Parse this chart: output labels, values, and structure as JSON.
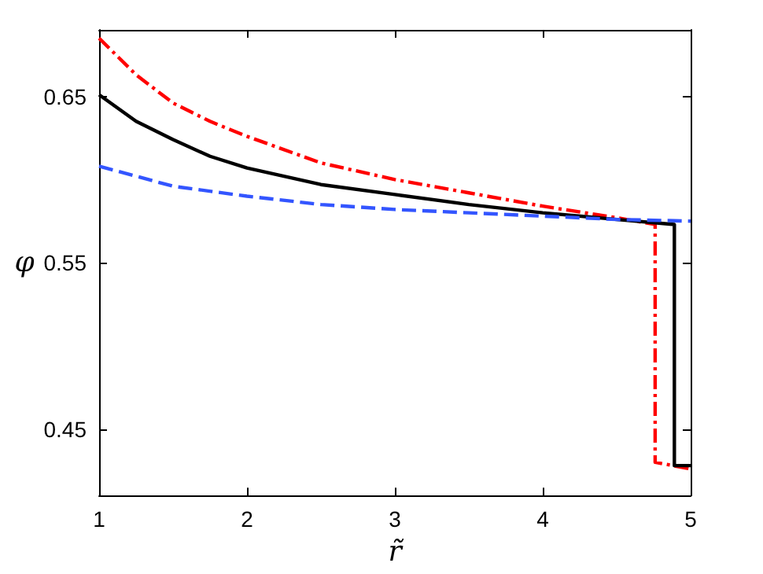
{
  "chart_data": {
    "type": "line",
    "xlabel": "r̃",
    "ylabel": "φ",
    "xlim": [
      1,
      5
    ],
    "ylim": [
      0.41,
      0.69
    ],
    "xticks": [
      1,
      2,
      3,
      4,
      5
    ],
    "yticks": [
      0.45,
      0.55,
      0.65
    ],
    "grid": false,
    "marker": "none",
    "series": [
      {
        "color": "#ff0000",
        "line_style": "dashdot",
        "x": [
          1,
          1.25,
          1.5,
          1.75,
          2,
          2.5,
          3,
          3.5,
          4,
          4.5,
          4.76,
          4.76,
          5
        ],
        "values": [
          0.685,
          0.663,
          0.646,
          0.635,
          0.626,
          0.61,
          0.6,
          0.592,
          0.584,
          0.577,
          0.573,
          0.43,
          0.426
        ]
      },
      {
        "color": "#000000",
        "line_style": "solid",
        "x": [
          1,
          1.25,
          1.5,
          1.75,
          2,
          2.5,
          3,
          3.5,
          4,
          4.5,
          4.89,
          4.89,
          5
        ],
        "values": [
          0.651,
          0.635,
          0.624,
          0.614,
          0.607,
          0.597,
          0.591,
          0.585,
          0.58,
          0.576,
          0.573,
          0.428,
          0.428
        ]
      },
      {
        "color": "#3355ff",
        "line_style": "dashed",
        "x": [
          1,
          1.5,
          2,
          2.5,
          3,
          3.5,
          4,
          4.5,
          5
        ],
        "values": [
          0.608,
          0.596,
          0.59,
          0.585,
          0.582,
          0.58,
          0.578,
          0.576,
          0.575
        ]
      }
    ]
  }
}
